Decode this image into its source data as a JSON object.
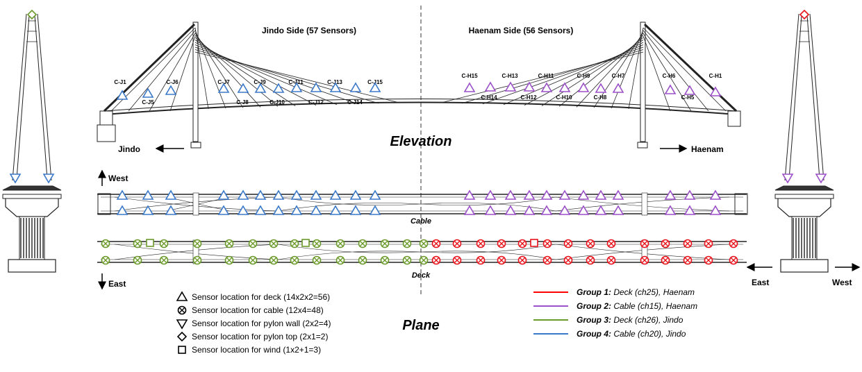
{
  "titles": {
    "jindo_side": "Jindo Side (57 Sensors)",
    "haenam_side": "Haenam Side (56 Sensors)",
    "elevation": "Elevation",
    "plane": "Plane",
    "cable_label": "Cable",
    "deck_label": "Deck"
  },
  "directions": {
    "jindo": "Jindo",
    "haenam": "Haenam",
    "west_top": "West",
    "east_bottom": "East",
    "east_right": "East",
    "west_right": "West"
  },
  "cables_jindo_upper": [
    "C-J1",
    "C-J6",
    "C-J7",
    "C-J9",
    "C-J11",
    "C-J13",
    "C-J15"
  ],
  "cables_jindo_lower": [
    "C-J5",
    "C-J8",
    "C-J10",
    "C-J12",
    "C-J14"
  ],
  "cables_haenam_upper": [
    "C-H15",
    "C-H13",
    "C-H11",
    "C-H9",
    "C-H7",
    "C-H6",
    "C-H1"
  ],
  "cables_haenam_lower": [
    "C-H14",
    "C-H12",
    "C-H10",
    "C-H8",
    "C-H5"
  ],
  "sensor_legend": [
    {
      "symbol": "triangle-up",
      "label": "Sensor location for deck (14x2x2=56)"
    },
    {
      "symbol": "circle-x",
      "label": "Sensor location for cable (12x4=48)"
    },
    {
      "symbol": "triangle-down",
      "label": "Sensor location for pylon wall (2x2=4)"
    },
    {
      "symbol": "diamond",
      "label": "Sensor location for pylon top (2x1=2)"
    },
    {
      "symbol": "square",
      "label": "Sensor location for wind (1x2+1=3)"
    }
  ],
  "group_legend": [
    {
      "name": "Group 1:",
      "desc": " Deck (ch25), Haenam",
      "color": "#ff0000"
    },
    {
      "name": "Group 2:",
      "desc": " Cable (ch15), Haenam",
      "color": "#9b4fc8"
    },
    {
      "name": "Group 3:",
      "desc": " Deck (ch26), Jindo",
      "color": "#6a9a2a"
    },
    {
      "name": "Group 4:",
      "desc": " Cable (ch20), Jindo",
      "color": "#3a78c8"
    }
  ],
  "colors": {
    "jindo_cable": "#3a78c8",
    "haenam_cable": "#9b4fc8",
    "jindo_deck": "#6a9a2a",
    "haenam_deck": "#e8121a",
    "structure": "#222222"
  }
}
